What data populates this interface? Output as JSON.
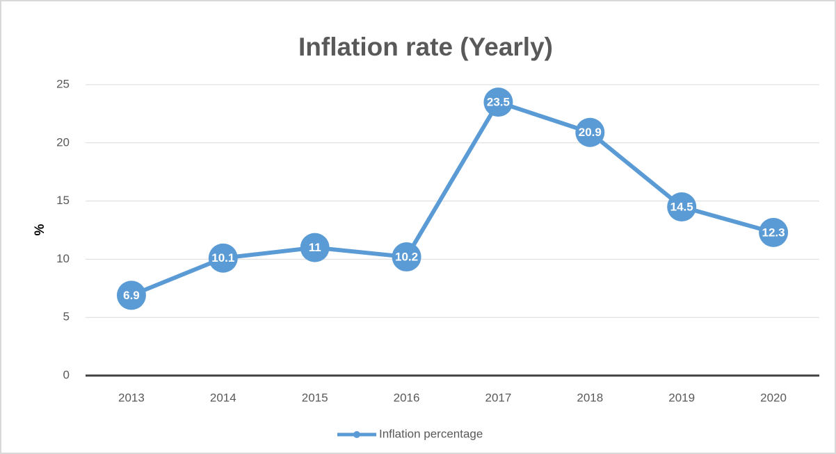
{
  "chart_data": {
    "type": "line",
    "title": "Inflation rate (Yearly)",
    "y_label": "%",
    "categories": [
      "2013",
      "2014",
      "2015",
      "2016",
      "2017",
      "2018",
      "2019",
      "2020"
    ],
    "series": [
      {
        "name": "Inflation percentage",
        "color": "#5b9bd5",
        "values": [
          6.9,
          10.1,
          11,
          10.2,
          23.5,
          20.9,
          14.5,
          12.3
        ]
      }
    ],
    "ylim": [
      0,
      25
    ],
    "yticks": [
      0,
      5,
      10,
      15,
      20,
      25
    ],
    "grid": true,
    "legend": "bottom",
    "data_labels": true
  }
}
